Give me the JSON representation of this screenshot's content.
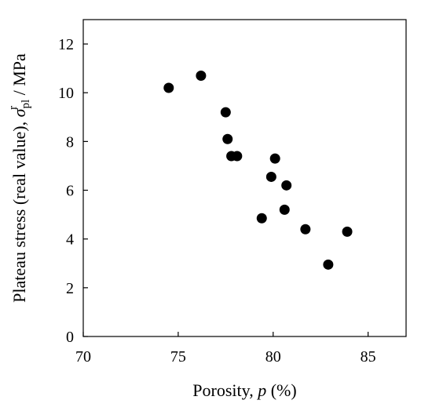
{
  "chart_data": {
    "type": "scatter",
    "title": "",
    "xlabel": {
      "prefix": "Porosity, ",
      "symbol": "p",
      "unit": " (%)"
    },
    "ylabel": {
      "prefix": "Plateau stress (real value), ",
      "symbol": "σ",
      "subscript": "pl",
      "superscript": "r",
      "unit": " / MPa"
    },
    "xlim": [
      70,
      87
    ],
    "ylim": [
      0,
      13
    ],
    "xticks": [
      70,
      75,
      80,
      85
    ],
    "yticks": [
      0,
      2,
      4,
      6,
      8,
      10,
      12
    ],
    "grid": false,
    "marker_color": "#000000",
    "series": [
      {
        "x": [
          74.5,
          76.2,
          77.5,
          77.6,
          77.8,
          78.1,
          79.4,
          79.9,
          80.1,
          80.6,
          80.7,
          81.7,
          82.9,
          83.9
        ],
        "y": [
          10.2,
          10.7,
          9.2,
          8.1,
          7.4,
          7.4,
          4.85,
          6.55,
          7.3,
          5.2,
          6.2,
          4.4,
          2.95,
          4.3
        ]
      }
    ]
  }
}
